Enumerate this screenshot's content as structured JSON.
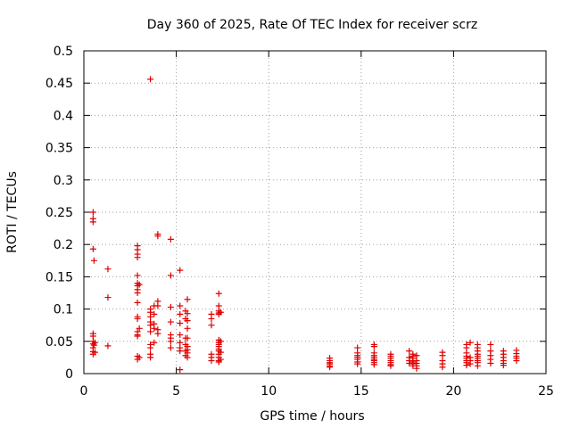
{
  "chart_data": {
    "type": "scatter",
    "title": "Day 360 of 2025, Rate Of TEC Index for receiver scrz",
    "xlabel": "GPS time / hours",
    "ylabel": "ROTI / TECUs",
    "xlim": [
      0,
      25
    ],
    "ylim": [
      0,
      0.5
    ],
    "xticks": [
      0,
      5,
      10,
      15,
      20,
      25
    ],
    "xtick_labels": [
      "0",
      "5",
      "10",
      "15",
      "20",
      "25"
    ],
    "yticks": [
      0,
      0.05,
      0.1,
      0.15,
      0.2,
      0.25,
      0.3,
      0.35,
      0.4,
      0.45,
      0.5
    ],
    "ytick_labels": [
      "0",
      "0.05",
      "0.1",
      "0.15",
      "0.2",
      "0.25",
      "0.3",
      "0.35",
      "0.4",
      "0.45",
      "0.5"
    ],
    "grid": true,
    "marker": "plus",
    "color": "#e00000",
    "series": [
      {
        "name": "ROTI",
        "points": [
          [
            0.5,
            0.25
          ],
          [
            0.5,
            0.24
          ],
          [
            0.5,
            0.235
          ],
          [
            0.5,
            0.193
          ],
          [
            0.55,
            0.175
          ],
          [
            0.5,
            0.062
          ],
          [
            0.5,
            0.058
          ],
          [
            0.5,
            0.05
          ],
          [
            0.5,
            0.046
          ],
          [
            0.55,
            0.044
          ],
          [
            0.5,
            0.04
          ],
          [
            0.5,
            0.034
          ],
          [
            0.5,
            0.03
          ],
          [
            0.6,
            0.048
          ],
          [
            0.6,
            0.033
          ],
          [
            1.3,
            0.162
          ],
          [
            1.3,
            0.118
          ],
          [
            1.3,
            0.043
          ],
          [
            2.9,
            0.198
          ],
          [
            2.9,
            0.192
          ],
          [
            2.9,
            0.185
          ],
          [
            2.9,
            0.18
          ],
          [
            2.9,
            0.152
          ],
          [
            2.9,
            0.14
          ],
          [
            2.9,
            0.136
          ],
          [
            2.9,
            0.13
          ],
          [
            2.9,
            0.125
          ],
          [
            2.9,
            0.11
          ],
          [
            2.9,
            0.088
          ],
          [
            2.9,
            0.085
          ],
          [
            2.9,
            0.065
          ],
          [
            2.9,
            0.06
          ],
          [
            2.9,
            0.058
          ],
          [
            2.9,
            0.027
          ],
          [
            2.9,
            0.022
          ],
          [
            3.0,
            0.138
          ],
          [
            3.0,
            0.07
          ],
          [
            3.0,
            0.025
          ],
          [
            3.6,
            0.456
          ],
          [
            3.6,
            0.1
          ],
          [
            3.6,
            0.095
          ],
          [
            3.6,
            0.088
          ],
          [
            3.6,
            0.08
          ],
          [
            3.6,
            0.075
          ],
          [
            3.6,
            0.065
          ],
          [
            3.6,
            0.045
          ],
          [
            3.6,
            0.04
          ],
          [
            3.6,
            0.03
          ],
          [
            3.6,
            0.025
          ],
          [
            3.8,
            0.105
          ],
          [
            3.8,
            0.092
          ],
          [
            3.8,
            0.077
          ],
          [
            3.8,
            0.07
          ],
          [
            3.8,
            0.048
          ],
          [
            4.0,
            0.216
          ],
          [
            4.0,
            0.213
          ],
          [
            4.0,
            0.112
          ],
          [
            4.0,
            0.105
          ],
          [
            4.0,
            0.068
          ],
          [
            4.0,
            0.062
          ],
          [
            4.7,
            0.208
          ],
          [
            4.7,
            0.152
          ],
          [
            4.7,
            0.103
          ],
          [
            4.7,
            0.08
          ],
          [
            4.7,
            0.06
          ],
          [
            4.7,
            0.055
          ],
          [
            4.7,
            0.05
          ],
          [
            4.7,
            0.04
          ],
          [
            5.2,
            0.16
          ],
          [
            5.2,
            0.105
          ],
          [
            5.2,
            0.092
          ],
          [
            5.2,
            0.078
          ],
          [
            5.2,
            0.06
          ],
          [
            5.2,
            0.048
          ],
          [
            5.2,
            0.04
          ],
          [
            5.2,
            0.035
          ],
          [
            5.2,
            0.006
          ],
          [
            5.5,
            0.097
          ],
          [
            5.5,
            0.085
          ],
          [
            5.5,
            0.055
          ],
          [
            5.5,
            0.045
          ],
          [
            5.5,
            0.035
          ],
          [
            5.5,
            0.028
          ],
          [
            5.6,
            0.115
          ],
          [
            5.6,
            0.093
          ],
          [
            5.6,
            0.082
          ],
          [
            5.6,
            0.07
          ],
          [
            5.6,
            0.055
          ],
          [
            5.6,
            0.042
          ],
          [
            5.6,
            0.037
          ],
          [
            5.6,
            0.032
          ],
          [
            5.6,
            0.025
          ],
          [
            6.9,
            0.092
          ],
          [
            6.9,
            0.085
          ],
          [
            6.9,
            0.075
          ],
          [
            6.9,
            0.03
          ],
          [
            6.9,
            0.025
          ],
          [
            6.9,
            0.02
          ],
          [
            7.3,
            0.124
          ],
          [
            7.3,
            0.105
          ],
          [
            7.3,
            0.097
          ],
          [
            7.3,
            0.094
          ],
          [
            7.3,
            0.092
          ],
          [
            7.3,
            0.052
          ],
          [
            7.3,
            0.048
          ],
          [
            7.3,
            0.045
          ],
          [
            7.3,
            0.042
          ],
          [
            7.3,
            0.038
          ],
          [
            7.3,
            0.035
          ],
          [
            7.3,
            0.03
          ],
          [
            7.3,
            0.025
          ],
          [
            7.3,
            0.02
          ],
          [
            7.3,
            0.018
          ],
          [
            7.4,
            0.095
          ],
          [
            7.4,
            0.05
          ],
          [
            7.4,
            0.033
          ],
          [
            7.4,
            0.022
          ],
          [
            13.3,
            0.024
          ],
          [
            13.3,
            0.02
          ],
          [
            13.3,
            0.017
          ],
          [
            13.3,
            0.015
          ],
          [
            13.3,
            0.012
          ],
          [
            13.3,
            0.01
          ],
          [
            14.8,
            0.04
          ],
          [
            14.8,
            0.032
          ],
          [
            14.8,
            0.028
          ],
          [
            14.8,
            0.025
          ],
          [
            14.8,
            0.022
          ],
          [
            14.8,
            0.018
          ],
          [
            14.8,
            0.015
          ],
          [
            15.7,
            0.045
          ],
          [
            15.7,
            0.042
          ],
          [
            15.7,
            0.032
          ],
          [
            15.7,
            0.028
          ],
          [
            15.7,
            0.025
          ],
          [
            15.7,
            0.022
          ],
          [
            15.7,
            0.02
          ],
          [
            15.7,
            0.017
          ],
          [
            15.7,
            0.014
          ],
          [
            16.6,
            0.03
          ],
          [
            16.6,
            0.027
          ],
          [
            16.6,
            0.024
          ],
          [
            16.6,
            0.02
          ],
          [
            16.6,
            0.017
          ],
          [
            16.6,
            0.014
          ],
          [
            16.6,
            0.012
          ],
          [
            17.6,
            0.035
          ],
          [
            17.6,
            0.025
          ],
          [
            17.6,
            0.02
          ],
          [
            17.6,
            0.016
          ],
          [
            17.8,
            0.03
          ],
          [
            17.8,
            0.027
          ],
          [
            17.8,
            0.024
          ],
          [
            17.8,
            0.02
          ],
          [
            17.8,
            0.018
          ],
          [
            17.8,
            0.015
          ],
          [
            17.8,
            0.012
          ],
          [
            18.0,
            0.028
          ],
          [
            18.0,
            0.02
          ],
          [
            18.0,
            0.016
          ],
          [
            18.0,
            0.012
          ],
          [
            18.0,
            0.008
          ],
          [
            19.4,
            0.033
          ],
          [
            19.4,
            0.028
          ],
          [
            19.4,
            0.02
          ],
          [
            19.4,
            0.015
          ],
          [
            19.4,
            0.01
          ],
          [
            20.7,
            0.045
          ],
          [
            20.7,
            0.04
          ],
          [
            20.7,
            0.032
          ],
          [
            20.7,
            0.027
          ],
          [
            20.7,
            0.024
          ],
          [
            20.7,
            0.02
          ],
          [
            20.7,
            0.017
          ],
          [
            20.7,
            0.013
          ],
          [
            20.9,
            0.048
          ],
          [
            20.9,
            0.025
          ],
          [
            20.9,
            0.02
          ],
          [
            20.9,
            0.015
          ],
          [
            21.3,
            0.045
          ],
          [
            21.3,
            0.04
          ],
          [
            21.3,
            0.035
          ],
          [
            21.3,
            0.03
          ],
          [
            21.3,
            0.027
          ],
          [
            21.3,
            0.024
          ],
          [
            21.3,
            0.02
          ],
          [
            21.3,
            0.017
          ],
          [
            21.3,
            0.012
          ],
          [
            22.0,
            0.045
          ],
          [
            22.0,
            0.035
          ],
          [
            22.0,
            0.028
          ],
          [
            22.0,
            0.022
          ],
          [
            22.0,
            0.016
          ],
          [
            22.7,
            0.035
          ],
          [
            22.7,
            0.03
          ],
          [
            22.7,
            0.025
          ],
          [
            22.7,
            0.02
          ],
          [
            22.7,
            0.016
          ],
          [
            22.7,
            0.013
          ],
          [
            23.4,
            0.036
          ],
          [
            23.4,
            0.031
          ],
          [
            23.4,
            0.027
          ],
          [
            23.4,
            0.024
          ],
          [
            23.4,
            0.02
          ]
        ]
      }
    ]
  }
}
